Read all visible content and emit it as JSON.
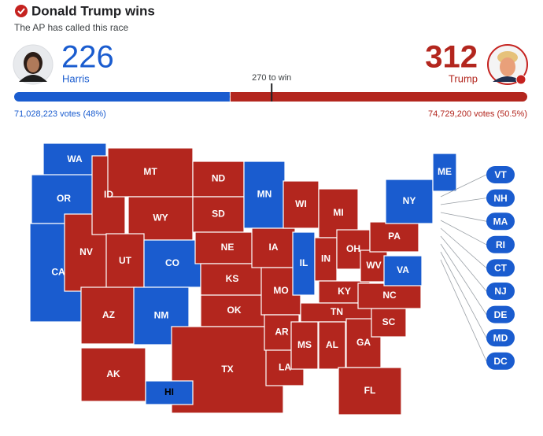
{
  "header": {
    "title": "Donald Trump wins",
    "subtitle": "The AP has called this race"
  },
  "candidates": [
    {
      "name": "Harris",
      "electoral_votes": 226,
      "votes": "71,028,223 votes (48%)",
      "color": "#1a5ccf"
    },
    {
      "name": "Trump",
      "electoral_votes": 312,
      "votes": "74,729,200 votes (50.5%)",
      "color": "#b3261e"
    }
  ],
  "threshold": {
    "value": 270,
    "label": "270 to win"
  },
  "states": [
    {
      "label": "WA",
      "color": "#1a5ccf"
    },
    {
      "label": "OR",
      "color": "#1a5ccf"
    },
    {
      "label": "CA",
      "color": "#1a5ccf"
    },
    {
      "label": "NV",
      "color": "#b3261e"
    },
    {
      "label": "ID",
      "color": "#b3261e"
    },
    {
      "label": "MT",
      "color": "#b3261e"
    },
    {
      "label": "WY",
      "color": "#b3261e"
    },
    {
      "label": "UT",
      "color": "#b3261e"
    },
    {
      "label": "AZ",
      "color": "#b3261e"
    },
    {
      "label": "CO",
      "color": "#1a5ccf"
    },
    {
      "label": "NM",
      "color": "#1a5ccf"
    },
    {
      "label": "ND",
      "color": "#b3261e"
    },
    {
      "label": "SD",
      "color": "#b3261e"
    },
    {
      "label": "NE",
      "color": "#b3261e"
    },
    {
      "label": "KS",
      "color": "#b3261e"
    },
    {
      "label": "OK",
      "color": "#b3261e"
    },
    {
      "label": "TX",
      "color": "#b3261e"
    },
    {
      "label": "MN",
      "color": "#1a5ccf"
    },
    {
      "label": "IA",
      "color": "#b3261e"
    },
    {
      "label": "MO",
      "color": "#b3261e"
    },
    {
      "label": "AR",
      "color": "#b3261e"
    },
    {
      "label": "LA",
      "color": "#b3261e"
    },
    {
      "label": "WI",
      "color": "#b3261e"
    },
    {
      "label": "IL",
      "color": "#1a5ccf"
    },
    {
      "label": "MI",
      "color": "#b3261e"
    },
    {
      "label": "IN",
      "color": "#b3261e"
    },
    {
      "label": "OH",
      "color": "#b3261e"
    },
    {
      "label": "KY",
      "color": "#b3261e"
    },
    {
      "label": "TN",
      "color": "#b3261e"
    },
    {
      "label": "MS",
      "color": "#b3261e"
    },
    {
      "label": "AL",
      "color": "#b3261e"
    },
    {
      "label": "GA",
      "color": "#b3261e"
    },
    {
      "label": "FL",
      "color": "#b3261e"
    },
    {
      "label": "SC",
      "color": "#b3261e"
    },
    {
      "label": "NC",
      "color": "#b3261e"
    },
    {
      "label": "WV",
      "color": "#b3261e"
    },
    {
      "label": "VA",
      "color": "#1a5ccf"
    },
    {
      "label": "PA",
      "color": "#b3261e"
    },
    {
      "label": "NY",
      "color": "#1a5ccf"
    },
    {
      "label": "ME",
      "color": "#1a5ccf"
    },
    {
      "label": "AK",
      "color": "#b3261e"
    },
    {
      "label": "HI",
      "color": "#1a5ccf"
    }
  ],
  "small_states": [
    {
      "label": "VT",
      "color": "#1a5ccf"
    },
    {
      "label": "NH",
      "color": "#1a5ccf"
    },
    {
      "label": "MA",
      "color": "#1a5ccf"
    },
    {
      "label": "RI",
      "color": "#1a5ccf"
    },
    {
      "label": "CT",
      "color": "#1a5ccf"
    },
    {
      "label": "NJ",
      "color": "#1a5ccf"
    },
    {
      "label": "DE",
      "color": "#1a5ccf"
    },
    {
      "label": "MD",
      "color": "#1a5ccf"
    },
    {
      "label": "DC",
      "color": "#1a5ccf"
    }
  ]
}
